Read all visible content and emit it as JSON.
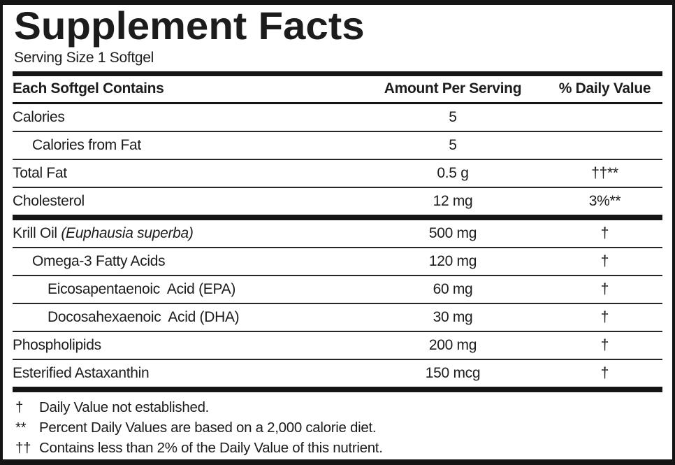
{
  "title": "Supplement Facts",
  "serving_size": "Serving Size 1 Softgel",
  "table": {
    "headers": {
      "contains": "Each Softgel Contains",
      "amount": "Amount Per Serving",
      "daily_value": "% Daily Value"
    },
    "rows": [
      {
        "name": "Calories",
        "indent": 0,
        "amount": "5",
        "dv": "",
        "bar_after": false
      },
      {
        "name": "Calories from Fat",
        "indent": 1,
        "amount": "5",
        "dv": "",
        "bar_after": false
      },
      {
        "name": "Total Fat",
        "indent": 0,
        "amount": "0.5 g",
        "dv": "††**",
        "bar_after": false
      },
      {
        "name": "Cholesterol",
        "indent": 0,
        "amount": "12 mg",
        "dv": "3%**",
        "bar_after": true
      },
      {
        "name": "Krill Oil ",
        "name_italic": "(Euphausia superba)",
        "indent": 0,
        "amount": "500 mg",
        "dv": "†",
        "bar_after": false
      },
      {
        "name": "Omega-3 Fatty Acids",
        "indent": 1,
        "amount": "120 mg",
        "dv": "†",
        "bar_after": false
      },
      {
        "name": "Eicosapentaenoic  Acid (EPA)",
        "indent": 2,
        "amount": "60 mg",
        "dv": "†",
        "bar_after": false
      },
      {
        "name": "Docosahexaenoic  Acid (DHA)",
        "indent": 2,
        "amount": "30 mg",
        "dv": "†",
        "bar_after": false
      },
      {
        "name": "Phospholipids",
        "indent": 0,
        "amount": "200 mg",
        "dv": "†",
        "bar_after": false
      },
      {
        "name": "Esterified Astaxanthin",
        "indent": 0,
        "amount": "150 mcg",
        "dv": "†",
        "bar_after": true
      }
    ]
  },
  "footnotes": [
    {
      "symbol": "†",
      "text": "Daily Value not established."
    },
    {
      "symbol": "**",
      "text": "Percent Daily Values are based on a 2,000 calorie diet."
    },
    {
      "symbol": "††",
      "text": "Contains less than 2% of the Daily Value of this nutrient."
    }
  ],
  "colors": {
    "ink": "#1c1c1c",
    "rule": "#262626",
    "bar": "#151515",
    "background": "#ffffff"
  }
}
